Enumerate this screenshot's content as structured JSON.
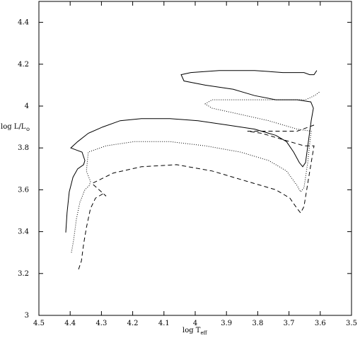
{
  "chart_data": {
    "type": "line",
    "x_label": "log T",
    "x_label_sub": "eff",
    "y_label": "log L/L",
    "y_label_sub": "⊙",
    "xlim": [
      4.5,
      3.5
    ],
    "ylim": [
      3,
      4.5
    ],
    "xticks": [
      4.5,
      4.4,
      4.3,
      4.2,
      4.1,
      4,
      3.9,
      3.8,
      3.7,
      3.6,
      3.5
    ],
    "yticks": [
      3,
      3.2,
      3.4,
      3.6,
      3.8,
      4,
      4.2,
      4.4
    ],
    "series": [
      {
        "color": "#000",
        "dash": "solid",
        "x": [
          4.414,
          4.41,
          4.403,
          4.391,
          4.376,
          4.357,
          4.353,
          4.362,
          4.38,
          4.398,
          4.376,
          4.342,
          4.296,
          4.24,
          4.172,
          4.081,
          3.991,
          3.9,
          3.81,
          3.742,
          3.708,
          3.685,
          3.667,
          3.656,
          3.647,
          3.638,
          3.629,
          3.622,
          3.63,
          3.674,
          3.742,
          3.81,
          3.878,
          3.968,
          4.036,
          4.045,
          4.014,
          3.923,
          3.81,
          3.72,
          3.652,
          3.634,
          3.62,
          3.611
        ],
        "y": [
          3.396,
          3.49,
          3.59,
          3.66,
          3.7,
          3.72,
          3.74,
          3.78,
          3.79,
          3.8,
          3.83,
          3.87,
          3.9,
          3.93,
          3.94,
          3.94,
          3.93,
          3.91,
          3.89,
          3.86,
          3.83,
          3.78,
          3.73,
          3.71,
          3.73,
          3.83,
          3.93,
          3.99,
          4.02,
          4.03,
          4.03,
          4.05,
          4.08,
          4.1,
          4.12,
          4.15,
          4.16,
          4.17,
          4.17,
          4.16,
          4.16,
          4.15,
          4.15,
          4.17
        ]
      },
      {
        "color": "#000",
        "dash": "dotted",
        "x": [
          4.396,
          4.389,
          4.38,
          4.369,
          4.353,
          4.339,
          4.335,
          4.348,
          4.342,
          4.285,
          4.195,
          4.081,
          3.968,
          3.855,
          3.765,
          3.708,
          3.674,
          3.663,
          3.652,
          3.64,
          3.633,
          3.629,
          3.674,
          3.765,
          3.855,
          3.946,
          3.968,
          3.946,
          3.855,
          3.72,
          3.647,
          3.618,
          3.6
        ],
        "y": [
          3.3,
          3.36,
          3.46,
          3.54,
          3.6,
          3.62,
          3.64,
          3.69,
          3.78,
          3.81,
          3.83,
          3.83,
          3.81,
          3.78,
          3.74,
          3.69,
          3.62,
          3.59,
          3.61,
          3.73,
          3.83,
          3.88,
          3.89,
          3.93,
          3.96,
          3.99,
          4.01,
          4.03,
          4.03,
          4.03,
          4.03,
          4.05,
          4.07
        ]
      },
      {
        "color": "#000",
        "dash": "dashed",
        "x": [
          4.373,
          4.364,
          4.357,
          4.348,
          4.335,
          4.319,
          4.296,
          4.285,
          4.33,
          4.262,
          4.172,
          4.059,
          3.946,
          3.833,
          3.742,
          3.697,
          3.674,
          3.663,
          3.652,
          3.64,
          3.629,
          3.62,
          3.652,
          3.72,
          3.787,
          3.833,
          3.765,
          3.674,
          3.618
        ],
        "y": [
          3.22,
          3.26,
          3.34,
          3.42,
          3.51,
          3.56,
          3.58,
          3.57,
          3.63,
          3.68,
          3.71,
          3.72,
          3.69,
          3.64,
          3.6,
          3.56,
          3.51,
          3.49,
          3.52,
          3.63,
          3.73,
          3.81,
          3.81,
          3.84,
          3.87,
          3.88,
          3.88,
          3.88,
          3.91
        ]
      }
    ]
  }
}
